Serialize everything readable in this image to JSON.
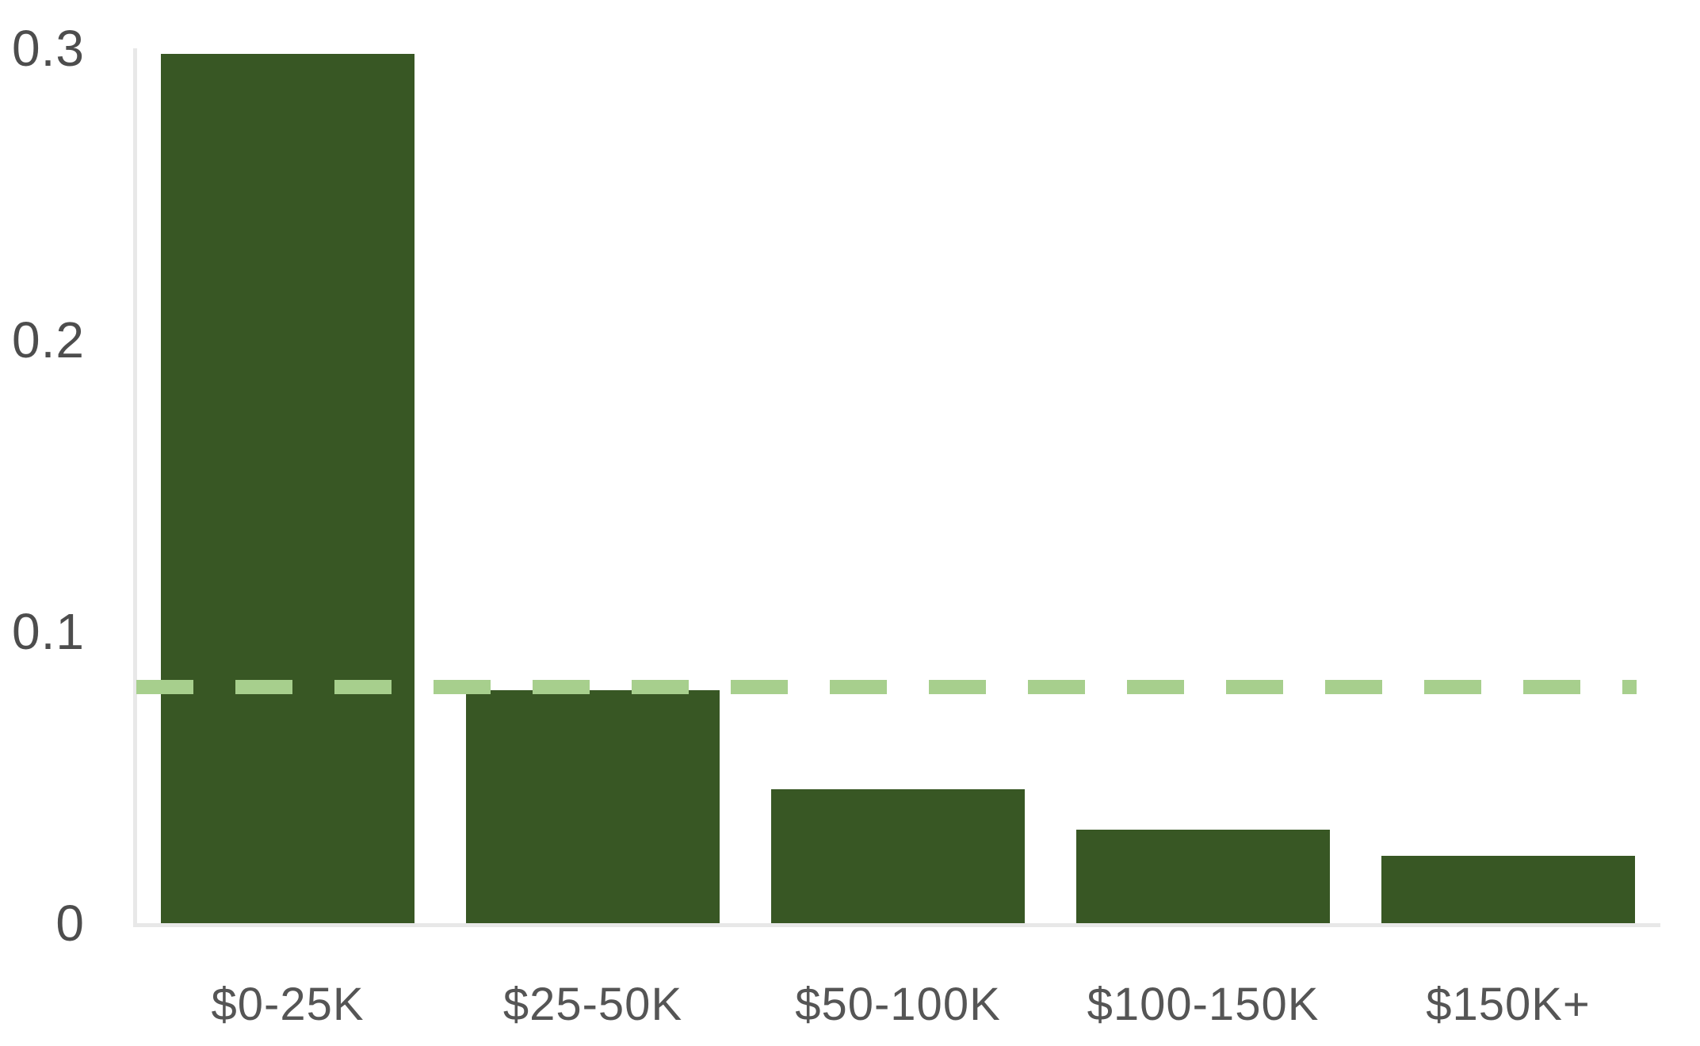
{
  "chart_data": {
    "type": "bar",
    "title": "",
    "xlabel": "",
    "ylabel": "",
    "categories": [
      "$0-25K",
      "$25-50K",
      "$50-100K",
      "$100-150K",
      "$150K+"
    ],
    "values": [
      0.298,
      0.08,
      0.046,
      0.032,
      0.023
    ],
    "ylim": [
      0,
      0.3
    ],
    "yticks": [
      0,
      0.1,
      0.2,
      0.3
    ],
    "ytick_labels": [
      "0",
      "0.1",
      "0.2",
      "0.3"
    ],
    "grid": false,
    "legend": false,
    "reference_line": {
      "value": 0.081,
      "style": "dashed",
      "color": "#A7CF8D"
    },
    "colors": {
      "bar": "#385724",
      "axis_line": "#E8E8E8",
      "tick_label": "#4D4D4D"
    }
  }
}
